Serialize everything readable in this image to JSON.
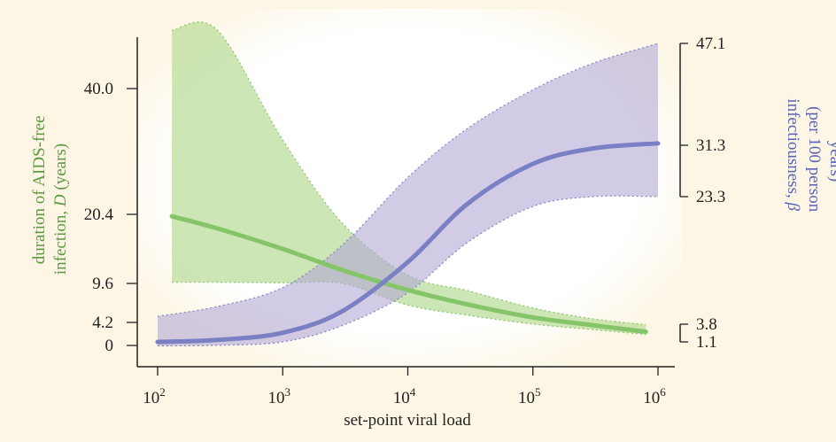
{
  "chart_data": {
    "type": "area",
    "x_scale": "log",
    "x_ticks": [
      {
        "value": 100,
        "base": "10",
        "exp": "2"
      },
      {
        "value": 1000,
        "base": "10",
        "exp": "3"
      },
      {
        "value": 10000,
        "base": "10",
        "exp": "4"
      },
      {
        "value": 100000,
        "base": "10",
        "exp": "5"
      },
      {
        "value": 1000000,
        "base": "10",
        "exp": "6"
      }
    ],
    "xlabel": "set-point viral load",
    "xlim": [
      100,
      1000000
    ],
    "y_left": {
      "label_line1": "duration of AIDS-free",
      "label_line2_prefix": "infection, ",
      "label_symbol": "D",
      "label_line2_suffix": " (years)",
      "ticks": [
        "40.0",
        "20.4",
        "9.6",
        "4.2",
        "0"
      ],
      "tick_values": [
        40.0,
        20.4,
        9.6,
        4.2,
        0
      ],
      "ylim": [
        0,
        48.4
      ]
    },
    "y_right": {
      "label_line1_prefix": "infectiousness, ",
      "label_symbol": "β",
      "label_line2": "(per 100 person",
      "label_line3": "years)",
      "ticks": [
        "47.1",
        "31.3",
        "23.3",
        "3.8",
        "1.1"
      ],
      "tick_values": [
        47.1,
        31.3,
        23.3,
        3.8,
        1.1
      ],
      "bracket_upper": [
        23.3,
        47.1
      ],
      "bracket_lower": [
        1.1,
        3.8
      ]
    },
    "series": [
      {
        "axis": "left",
        "color": "#86c46a",
        "band_color": "#b8dc95",
        "x": [
          130,
          300,
          1000,
          3000,
          10000,
          30000,
          100000,
          300000,
          800000
        ],
        "mean": [
          20.1,
          18.2,
          15.0,
          11.7,
          8.7,
          6.7,
          4.9,
          3.7,
          2.5
        ],
        "lower": [
          9.8,
          9.8,
          9.7,
          9.6,
          6.6,
          5.2,
          3.9,
          2.9,
          2.0
        ],
        "upper": [
          48.4,
          48.4,
          32.0,
          19.0,
          10.9,
          8.6,
          6.2,
          4.7,
          3.8
        ]
      },
      {
        "axis": "right",
        "color": "#7b7fc4",
        "band_color": "#b2a9d3",
        "x": [
          100,
          300,
          1000,
          3000,
          10000,
          30000,
          100000,
          300000,
          1000000
        ],
        "mean": [
          1.1,
          1.4,
          2.5,
          5.8,
          13.3,
          22.2,
          28.4,
          30.8,
          31.6
        ],
        "lower": [
          0.4,
          0.5,
          1.1,
          3.6,
          8.6,
          16.3,
          21.8,
          23.3,
          23.3
        ],
        "upper": [
          5.0,
          6.5,
          9.4,
          15.9,
          26.3,
          33.9,
          39.9,
          44.0,
          47.1
        ]
      }
    ],
    "colors": {
      "background": "#fdf6e4",
      "plot_background": "#ffffff",
      "left_axis_label": "#5a9a3e",
      "right_axis_label": "#5b63b5",
      "axis": "#222222"
    }
  }
}
